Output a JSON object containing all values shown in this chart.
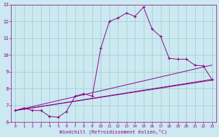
{
  "xlabel": "Windchill (Refroidissement éolien,°C)",
  "bg_color": "#cce8f0",
  "line_color": "#880088",
  "grid_color": "#99cccc",
  "xlim": [
    -0.5,
    23.5
  ],
  "ylim": [
    6.0,
    13.0
  ],
  "xticks": [
    0,
    1,
    2,
    3,
    4,
    5,
    6,
    7,
    8,
    9,
    10,
    11,
    12,
    13,
    14,
    15,
    16,
    17,
    18,
    19,
    20,
    21,
    22,
    23
  ],
  "yticks": [
    6,
    7,
    8,
    9,
    10,
    11,
    12,
    13
  ],
  "curve1_x": [
    0,
    1,
    2,
    3,
    4,
    5,
    6,
    7,
    8,
    9,
    10,
    11,
    12,
    13,
    14,
    15,
    16,
    17,
    18,
    19,
    20,
    21,
    22,
    23
  ],
  "curve1_y": [
    6.7,
    6.85,
    6.7,
    6.7,
    6.35,
    6.3,
    6.65,
    7.55,
    7.7,
    7.55,
    10.4,
    12.0,
    12.2,
    12.5,
    12.3,
    12.85,
    11.55,
    11.1,
    9.8,
    9.75,
    9.75,
    9.4,
    9.35,
    8.55
  ],
  "curve2_x": [
    0,
    23
  ],
  "curve2_y": [
    6.7,
    8.5
  ],
  "curve3_x": [
    0,
    23
  ],
  "curve3_y": [
    6.7,
    9.4
  ],
  "curve4_x": [
    0,
    23
  ],
  "curve4_y": [
    6.7,
    8.55
  ]
}
